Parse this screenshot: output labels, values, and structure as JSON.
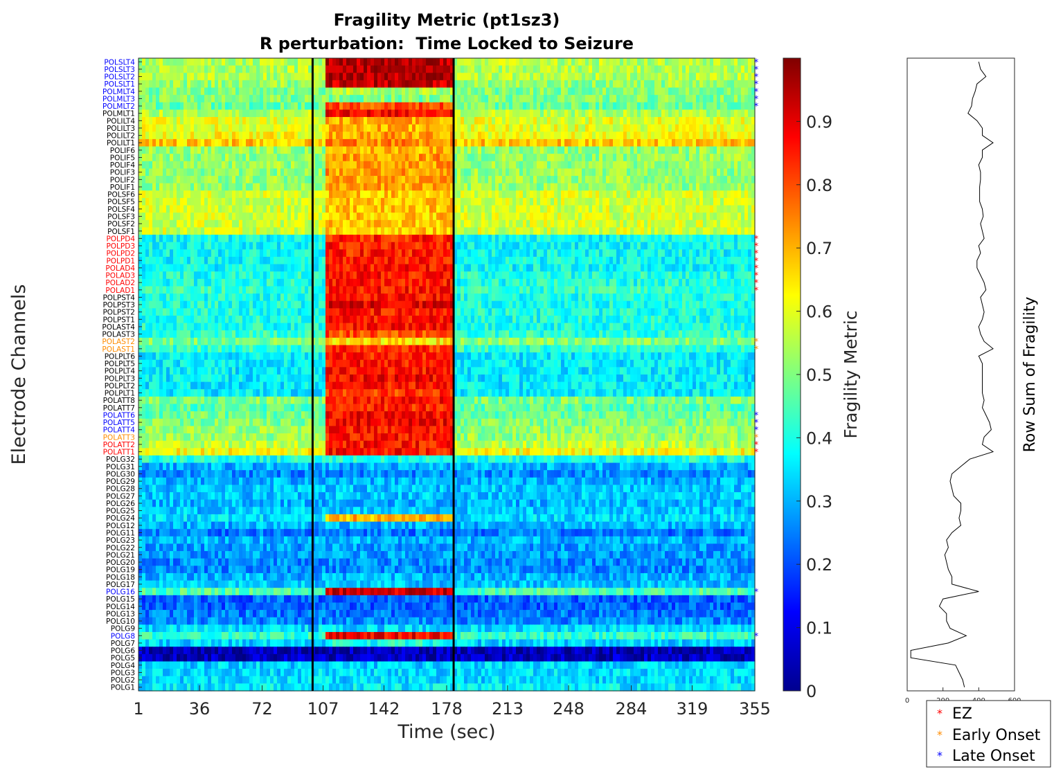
{
  "chart_data": {
    "type": "heatmap",
    "title": "Fragility Metric (pt1sz3)",
    "subtitle": "R perturbation:  Time Locked to Seizure",
    "xlabel": "Time (sec)",
    "ylabel": "Electrode Channels",
    "x_ticks": [
      1,
      36,
      72,
      107,
      142,
      178,
      213,
      248,
      284,
      319,
      355
    ],
    "xlim": [
      1,
      355
    ],
    "seizure_onset_sec": 101,
    "seizure_offset_sec": 182,
    "colorbar": {
      "label": "Fragility Metric",
      "ticks": [
        "0",
        "0.1",
        "0.2",
        "0.3",
        "0.4",
        "0.5",
        "0.6",
        "0.7",
        "0.8",
        "0.9"
      ],
      "range": [
        0,
        1
      ],
      "colormap": "jet"
    },
    "channels": [
      "POLSLT4",
      "POLSLT3",
      "POLSLT2",
      "POLSLT1",
      "POLMLT4",
      "POLMLT3",
      "POLMLT2",
      "POLMLT1",
      "POLILT4",
      "POLILT3",
      "POLILT2",
      "POLILT1",
      "POLIF6",
      "POLIF5",
      "POLIF4",
      "POLIF3",
      "POLIF2",
      "POLIF1",
      "POLSF6",
      "POLSF5",
      "POLSF4",
      "POLSF3",
      "POLSF2",
      "POLSF1",
      "POLPD4",
      "POLPD3",
      "POLPD2",
      "POLPD1",
      "POLAD4",
      "POLAD3",
      "POLAD2",
      "POLAD1",
      "POLPST4",
      "POLPST3",
      "POLPST2",
      "POLPST1",
      "POLAST4",
      "POLAST3",
      "POLAST2",
      "POLAST1",
      "POLPLT6",
      "POLPLT5",
      "POLPLT4",
      "POLPLT3",
      "POLPLT2",
      "POLPLT1",
      "POLATT8",
      "POLATT7",
      "POLATT6",
      "POLATT5",
      "POLATT4",
      "POLATT3",
      "POLATT2",
      "POLATT1",
      "POLG32",
      "POLG31",
      "POLG30",
      "POLG29",
      "POLG28",
      "POLG27",
      "POLG26",
      "POLG25",
      "POLG24",
      "POLG12",
      "POLG11",
      "POLG23",
      "POLG22",
      "POLG21",
      "POLG20",
      "POLG19",
      "POLG18",
      "POLG17",
      "POLG16",
      "POLG15",
      "POLG14",
      "POLG13",
      "POLG10",
      "POLG9",
      "POLG8",
      "POLG7",
      "POLG6",
      "POLG5",
      "POLG4",
      "POLG3",
      "POLG2",
      "POLG1"
    ],
    "channel_groups": [
      "late",
      "late",
      "late",
      "late",
      "late",
      "late",
      "late",
      "none",
      "none",
      "none",
      "none",
      "none",
      "none",
      "none",
      "none",
      "none",
      "none",
      "none",
      "none",
      "none",
      "none",
      "none",
      "none",
      "none",
      "ez",
      "ez",
      "ez",
      "ez",
      "ez",
      "ez",
      "ez",
      "ez",
      "none",
      "none",
      "none",
      "none",
      "none",
      "none",
      "early",
      "early",
      "none",
      "none",
      "none",
      "none",
      "none",
      "none",
      "none",
      "none",
      "late",
      "late",
      "late",
      "early",
      "ez",
      "ez",
      "none",
      "none",
      "none",
      "none",
      "none",
      "none",
      "none",
      "none",
      "none",
      "none",
      "none",
      "none",
      "none",
      "none",
      "none",
      "none",
      "none",
      "none",
      "late",
      "none",
      "none",
      "none",
      "none",
      "none",
      "late",
      "none",
      "none",
      "none",
      "none",
      "none",
      "none",
      "none"
    ],
    "group_colors": {
      "ez": "#ff0000",
      "early": "#ff8c00",
      "late": "#0000ff",
      "none": "#000000"
    },
    "channel_mean": [
      0.55,
      0.55,
      0.55,
      0.52,
      0.5,
      0.5,
      0.48,
      0.55,
      0.6,
      0.6,
      0.62,
      0.68,
      0.52,
      0.52,
      0.52,
      0.52,
      0.52,
      0.52,
      0.58,
      0.58,
      0.58,
      0.58,
      0.58,
      0.58,
      0.38,
      0.38,
      0.38,
      0.38,
      0.38,
      0.4,
      0.4,
      0.42,
      0.4,
      0.4,
      0.4,
      0.4,
      0.4,
      0.42,
      0.5,
      0.42,
      0.36,
      0.36,
      0.36,
      0.36,
      0.36,
      0.36,
      0.5,
      0.46,
      0.48,
      0.5,
      0.52,
      0.52,
      0.56,
      0.62,
      0.4,
      0.3,
      0.26,
      0.3,
      0.32,
      0.32,
      0.3,
      0.32,
      0.34,
      0.3,
      0.24,
      0.3,
      0.28,
      0.28,
      0.26,
      0.26,
      0.3,
      0.32,
      0.45,
      0.22,
      0.22,
      0.24,
      0.26,
      0.34,
      0.42,
      0.33,
      0.05,
      0.06,
      0.33,
      0.34,
      0.34,
      0.36
    ],
    "seizure_peak": [
      0.95,
      0.96,
      0.95,
      0.93,
      0.55,
      0.5,
      0.8,
      0.88,
      0.7,
      0.7,
      0.72,
      0.74,
      0.7,
      0.72,
      0.72,
      0.72,
      0.72,
      0.72,
      0.68,
      0.68,
      0.68,
      0.68,
      0.68,
      0.68,
      0.85,
      0.85,
      0.85,
      0.85,
      0.86,
      0.86,
      0.86,
      0.86,
      0.86,
      0.9,
      0.86,
      0.86,
      0.86,
      0.8,
      0.65,
      0.84,
      0.84,
      0.86,
      0.86,
      0.88,
      0.86,
      0.82,
      0.86,
      0.84,
      0.88,
      0.88,
      0.86,
      0.86,
      0.86,
      0.86,
      0.4,
      0.3,
      0.26,
      0.3,
      0.32,
      0.32,
      0.3,
      0.32,
      0.7,
      0.3,
      0.24,
      0.3,
      0.28,
      0.28,
      0.26,
      0.26,
      0.3,
      0.32,
      0.92,
      0.22,
      0.22,
      0.24,
      0.26,
      0.34,
      0.88,
      0.4,
      0.05,
      0.06,
      0.33,
      0.34,
      0.34,
      0.36
    ],
    "row_sum": {
      "xlabel": "Row Sum of Fragility",
      "x_ticks": [
        "0",
        "200",
        "400",
        "600"
      ],
      "xlim": [
        0,
        600
      ],
      "values": [
        400,
        410,
        440,
        390,
        380,
        365,
        360,
        340,
        390,
        420,
        420,
        480,
        420,
        420,
        400,
        410,
        410,
        405,
        405,
        405,
        420,
        425,
        410,
        420,
        430,
        400,
        410,
        390,
        390,
        410,
        430,
        440,
        410,
        420,
        430,
        420,
        400,
        410,
        430,
        480,
        400,
        420,
        420,
        420,
        420,
        420,
        430,
        420,
        440,
        460,
        470,
        430,
        420,
        480,
        350,
        300,
        250,
        240,
        250,
        260,
        300,
        300,
        290,
        300,
        250,
        220,
        230,
        210,
        220,
        230,
        250,
        250,
        400,
        200,
        180,
        220,
        220,
        240,
        330,
        230,
        20,
        20,
        270,
        290,
        310,
        320
      ]
    },
    "legend": {
      "placement": "bottom-right",
      "entries": [
        {
          "label": "EZ",
          "color": "#ff0000"
        },
        {
          "label": "Early Onset",
          "color": "#ff8c00"
        },
        {
          "label": "Late Onset",
          "color": "#0000ff"
        }
      ]
    }
  }
}
